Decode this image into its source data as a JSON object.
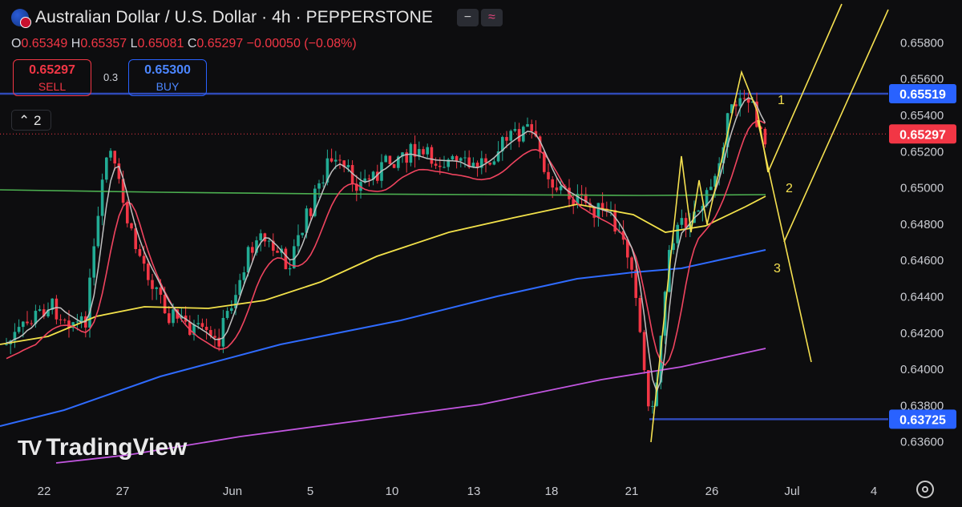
{
  "header": {
    "title": "Australian Dollar / U.S. Dollar · 4h · PEPPERSTONE",
    "ohlc": [
      {
        "k": "O",
        "v": "0.65349"
      },
      {
        "k": "H",
        "v": "0.65357"
      },
      {
        "k": "L",
        "v": "0.65081"
      },
      {
        "k": "C",
        "v": "0.65297"
      }
    ],
    "change": "−0.00050 (−0.08%)",
    "icons": [
      "minus-icon",
      "wave-icon"
    ]
  },
  "trade": {
    "sell_price": "0.65297",
    "sell_label": "SELL",
    "spread": "0.3",
    "buy_price": "0.65300",
    "buy_label": "BUY"
  },
  "indicators_toggle": "2",
  "logo_text": "TradingView",
  "colors": {
    "background": "#0d0d0f",
    "up": "#22ab94",
    "down": "#f23645",
    "ma_fast": "#c0c0c0",
    "ma_red": "#f0445f",
    "ma_yellow": "#f2e14a",
    "ma_blue": "#2f6bff",
    "ma_purple": "#c256e0",
    "green_line": "#4caf50",
    "annotation": "#f5e050",
    "h_line": "#2f4ab8"
  },
  "chart_data": {
    "type": "candlestick",
    "symbol": "Australian Dollar / U.S. Dollar",
    "timeframe": "4h",
    "x_ticks": [
      "22",
      "27",
      "Jun",
      "5",
      "10",
      "13",
      "18",
      "21",
      "26",
      "Jul",
      "4"
    ],
    "y_ticks": [
      "0.65800",
      "0.65600",
      "0.65400",
      "0.65200",
      "0.65000",
      "0.64800",
      "0.64600",
      "0.64400",
      "0.64200",
      "0.64000",
      "0.63800",
      "0.63600"
    ],
    "ylim": [
      0.6352,
      0.6601
    ],
    "price_labels": [
      {
        "value": "0.65519",
        "color": "#2962ff"
      },
      {
        "value": "0.65297",
        "color": "#f23645"
      },
      {
        "value": "0.63725",
        "color": "#2962ff"
      }
    ],
    "horizontal_levels": [
      0.65519,
      0.63725
    ],
    "last_close": 0.65297,
    "wave_labels": [
      "1",
      "2",
      "3"
    ],
    "close_path": [
      [
        "22",
        0.6425
      ],
      [
        "24",
        0.6448
      ],
      [
        "27",
        0.6483
      ],
      [
        "28",
        0.6452
      ],
      [
        "29",
        0.6441
      ],
      [
        "30",
        0.6432
      ],
      [
        "31",
        0.6443
      ],
      [
        "Jun",
        0.6436
      ],
      [
        "3",
        0.6476
      ],
      [
        "4",
        0.6466
      ],
      [
        "5",
        0.6482
      ],
      [
        "6",
        0.6511
      ],
      [
        "7",
        0.6499
      ],
      [
        "10",
        0.6518
      ],
      [
        "11",
        0.6509
      ],
      [
        "12",
        0.6521
      ],
      [
        "13",
        0.6518
      ],
      [
        "14",
        0.6508
      ],
      [
        "17",
        0.6529
      ],
      [
        "18",
        0.6501
      ],
      [
        "19",
        0.6495
      ],
      [
        "20",
        0.6483
      ],
      [
        "21",
        0.6452
      ],
      [
        "21.5",
        0.6382
      ],
      [
        "24",
        0.6498
      ],
      [
        "25",
        0.6489
      ],
      [
        "26",
        0.6531
      ],
      [
        "27",
        0.6558
      ],
      [
        "28",
        0.653
      ]
    ]
  }
}
